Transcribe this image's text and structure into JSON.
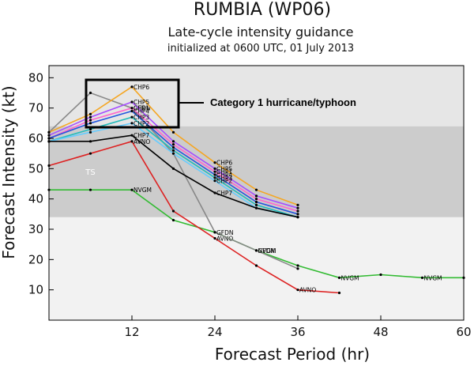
{
  "chart_data": {
    "type": "line",
    "title": "RUMBIA (WP06)",
    "subtitle": "Late-cycle intensity guidance",
    "subtitle2": "initialized at 0600 UTC, 01 July 2013",
    "xlabel": "Forecast Period (hr)",
    "ylabel": "Forecast Intensity (kt)",
    "xlim": [
      0,
      60
    ],
    "ylim": [
      0,
      84
    ],
    "xticks": [
      "12",
      "24",
      "36",
      "48",
      "60"
    ],
    "yticks": [
      "10",
      "20",
      "30",
      "40",
      "50",
      "60",
      "70",
      "80"
    ],
    "bands": [
      {
        "label": "TS",
        "from": 34,
        "to": 64,
        "color": "#cccccc"
      },
      {
        "label": "",
        "from": 64,
        "to": 84,
        "color": "#e6e6e6"
      }
    ],
    "annotation": "Category 1 hurricane/typhoon",
    "series": [
      {
        "name": "NVGM",
        "color": "#33bb33",
        "x": [
          0,
          6,
          12,
          18,
          24,
          30,
          36,
          42,
          48,
          54,
          60
        ],
        "y": [
          43,
          43,
          43,
          33,
          29,
          23,
          18,
          14,
          15,
          14,
          14
        ],
        "labels": [
          "",
          "",
          "NVGM",
          "",
          "",
          "NVGM",
          "",
          "NVGM",
          "",
          "NVGM",
          ""
        ]
      },
      {
        "name": "AVNO",
        "color": "#dd2222",
        "x": [
          0,
          6,
          12,
          18,
          24,
          30,
          36,
          42
        ],
        "y": [
          51,
          55,
          59,
          36,
          27,
          18,
          10,
          9
        ],
        "labels": [
          "",
          "",
          "AVNO",
          "",
          "AVNO",
          "",
          "AVNO",
          ""
        ]
      },
      {
        "name": "GFDN",
        "color": "#888888",
        "x": [
          0,
          6,
          12,
          18,
          24,
          30,
          36
        ],
        "y": [
          62,
          75,
          70,
          55,
          29,
          23,
          17
        ],
        "labels": [
          "",
          "",
          "GFDN",
          "",
          "GFDN",
          "GFDN",
          ""
        ]
      },
      {
        "name": "CHP6",
        "color": "#f5a623",
        "x": [
          0,
          6,
          12,
          18,
          24,
          30,
          36
        ],
        "y": [
          62,
          68,
          77,
          62,
          52,
          43,
          38
        ],
        "labels": [
          "",
          "",
          "CHP6",
          "",
          "CHP6",
          "",
          ""
        ]
      },
      {
        "name": "CHP5",
        "color": "#a64dff",
        "x": [
          0,
          6,
          12,
          18,
          24,
          30,
          36
        ],
        "y": [
          61,
          67,
          72,
          59,
          50,
          41,
          37
        ],
        "labels": [
          "",
          "",
          "CHP5",
          "",
          "CHP5",
          "",
          ""
        ]
      },
      {
        "name": "CHP1",
        "color": "#ff66cc",
        "x": [
          0,
          6,
          12,
          18,
          24,
          30,
          36
        ],
        "y": [
          60,
          66,
          70,
          58,
          49,
          40,
          36
        ],
        "labels": [
          "",
          "",
          "CHP1",
          "",
          "CHP1",
          "",
          ""
        ]
      },
      {
        "name": "CHP4",
        "color": "#2255dd",
        "x": [
          0,
          6,
          12,
          18,
          24,
          30,
          36
        ],
        "y": [
          60,
          65,
          69,
          57,
          48,
          39,
          35
        ],
        "labels": [
          "",
          "",
          "CHP4",
          "",
          "CHP4",
          "",
          ""
        ]
      },
      {
        "name": "CHP3",
        "color": "#22bbbb",
        "x": [
          0,
          6,
          12,
          18,
          24,
          30,
          36
        ],
        "y": [
          59,
          63,
          67,
          56,
          47,
          38,
          34
        ],
        "labels": [
          "",
          "",
          "CHP3",
          "",
          "CHP3",
          "",
          ""
        ]
      },
      {
        "name": "CHP2",
        "color": "#66ccff",
        "x": [
          0,
          6,
          12,
          18,
          24,
          30,
          36
        ],
        "y": [
          59,
          62,
          65,
          55,
          46,
          37,
          34
        ],
        "labels": [
          "",
          "",
          "CHP2",
          "",
          "CHP2",
          "",
          ""
        ]
      },
      {
        "name": "CHP7",
        "color": "#000000",
        "x": [
          0,
          6,
          12,
          18,
          24,
          30,
          36
        ],
        "y": [
          59,
          59,
          61,
          50,
          42,
          37,
          34
        ],
        "labels": [
          "",
          "",
          "CHP7",
          "",
          "CHP7",
          "",
          ""
        ]
      }
    ]
  }
}
